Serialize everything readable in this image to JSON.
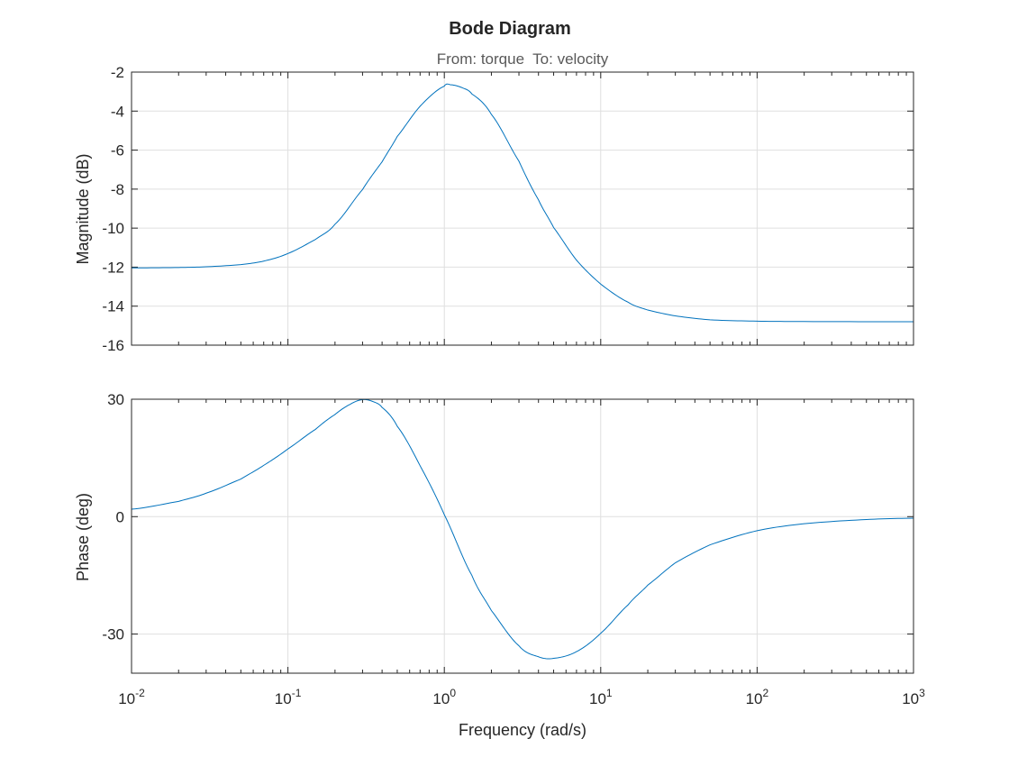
{
  "chart_data": {
    "type": "line",
    "title": "Bode Diagram",
    "subtitle": "From: torque  To: velocity",
    "xlabel": "Frequency (rad/s)",
    "xscale": "log",
    "xlim": [
      0.01,
      1000
    ],
    "x_tick_labels": [
      {
        "base": "10",
        "exp": "-2"
      },
      {
        "base": "10",
        "exp": "-1"
      },
      {
        "base": "10",
        "exp": "0"
      },
      {
        "base": "10",
        "exp": "1"
      },
      {
        "base": "10",
        "exp": "2"
      },
      {
        "base": "10",
        "exp": "3"
      }
    ],
    "grid": true,
    "subplots": [
      {
        "name": "magnitude",
        "ylabel": "Magnitude (dB)",
        "ylim": [
          -16,
          -2
        ],
        "yticks": [
          "-2",
          "-4",
          "-6",
          "-8",
          "-10",
          "-12",
          "-14",
          "-16"
        ],
        "series": [
          {
            "color": "#0072bd",
            "x": [
              0.01,
              0.02,
              0.03,
              0.05,
              0.07,
              0.1,
              0.15,
              0.2,
              0.3,
              0.4,
              0.5,
              0.7,
              1.0,
              1.1,
              1.3,
              1.5,
              2,
              3,
              4,
              5,
              7,
              10,
              15,
              20,
              30,
              50,
              100,
              200,
              1000
            ],
            "values": [
              -12.04,
              -12.02,
              -11.98,
              -11.87,
              -11.69,
              -11.3,
              -10.58,
              -9.8,
              -8.02,
              -6.6,
              -5.3,
              -3.75,
              -2.72,
              -2.65,
              -2.8,
              -3.12,
              -4.17,
              -6.57,
              -8.55,
              -9.97,
              -11.64,
              -12.87,
              -13.8,
              -14.2,
              -14.5,
              -14.7,
              -14.77,
              -14.79,
              -14.8
            ]
          }
        ]
      },
      {
        "name": "phase",
        "ylabel": "Phase (deg)",
        "ylim": [
          -40,
          30
        ],
        "yticks": [
          "30",
          "0",
          "-30"
        ],
        "series": [
          {
            "color": "#0072bd",
            "x": [
              0.01,
              0.02,
              0.03,
              0.05,
              0.07,
              0.1,
              0.15,
              0.2,
              0.25,
              0.3,
              0.35,
              0.4,
              0.5,
              0.7,
              1.0,
              1.5,
              2,
              3,
              4,
              5,
              7,
              10,
              15,
              20,
              30,
              50,
              100,
              200,
              500,
              1000
            ],
            "values": [
              1.9,
              3.9,
              6.0,
              9.6,
              13.1,
              17.3,
              22.3,
              26.1,
              28.7,
              29.9,
              29.4,
              27.9,
              23.1,
              13.0,
              0.5,
              -15.0,
              -24.0,
              -33.0,
              -35.8,
              -36.2,
              -34.5,
              -29.8,
              -22.5,
              -17.5,
              -11.8,
              -7.2,
              -3.6,
              -1.8,
              -0.75,
              -0.4
            ]
          }
        ]
      }
    ]
  }
}
